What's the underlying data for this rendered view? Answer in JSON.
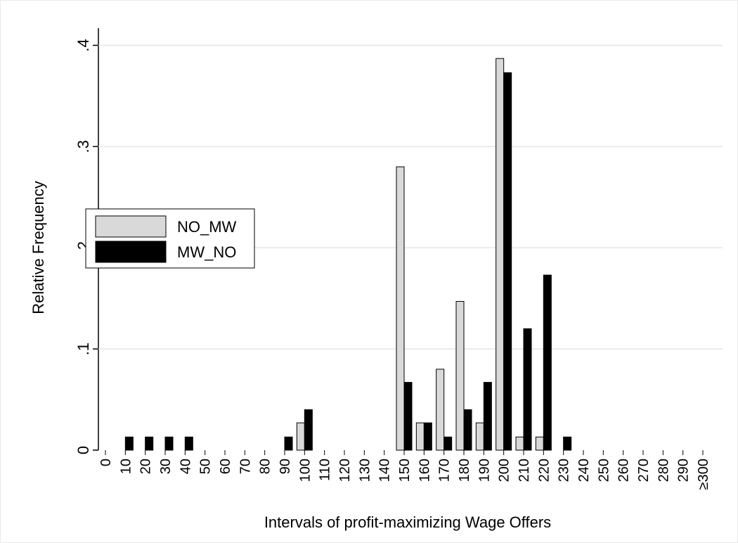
{
  "chart_data": {
    "type": "bar",
    "x_label": "Intervals of profit-maximizing Wage Offers",
    "y_label": "Relative Frequency",
    "categories": [
      "0",
      "10",
      "20",
      "30",
      "40",
      "50",
      "60",
      "70",
      "80",
      "90",
      "100",
      "110",
      "120",
      "130",
      "140",
      "150",
      "160",
      "170",
      "180",
      "190",
      "200",
      "210",
      "220",
      "230",
      "240",
      "250",
      "260",
      "270",
      "280",
      "290",
      "≥300"
    ],
    "series": [
      {
        "name": "NO_MW",
        "color": "#d9d9d9",
        "values": [
          0,
          0,
          0,
          0,
          0,
          0,
          0,
          0,
          0,
          0,
          0.027,
          0,
          0,
          0,
          0,
          0.28,
          0.027,
          0.08,
          0.147,
          0.027,
          0.387,
          0.013,
          0.013,
          0,
          0,
          0,
          0,
          0,
          0,
          0,
          0
        ]
      },
      {
        "name": "MW_NO",
        "color": "#000000",
        "values": [
          0,
          0.013,
          0.013,
          0.013,
          0.013,
          0,
          0,
          0,
          0,
          0.013,
          0.04,
          0,
          0,
          0,
          0,
          0.067,
          0.027,
          0.013,
          0.04,
          0.067,
          0.373,
          0.12,
          0.173,
          0.013,
          0,
          0,
          0,
          0,
          0,
          0,
          0
        ]
      }
    ],
    "ylim": [
      0,
      0.417
    ],
    "yticks": [
      0,
      {
        "value": 0.1,
        "label": ".1"
      },
      {
        "value": 0.2,
        "label": ".2"
      },
      {
        "value": 0.3,
        "label": ".3"
      },
      {
        "value": 0.4,
        "label": ".4"
      }
    ],
    "grid": true,
    "legend": "left"
  }
}
